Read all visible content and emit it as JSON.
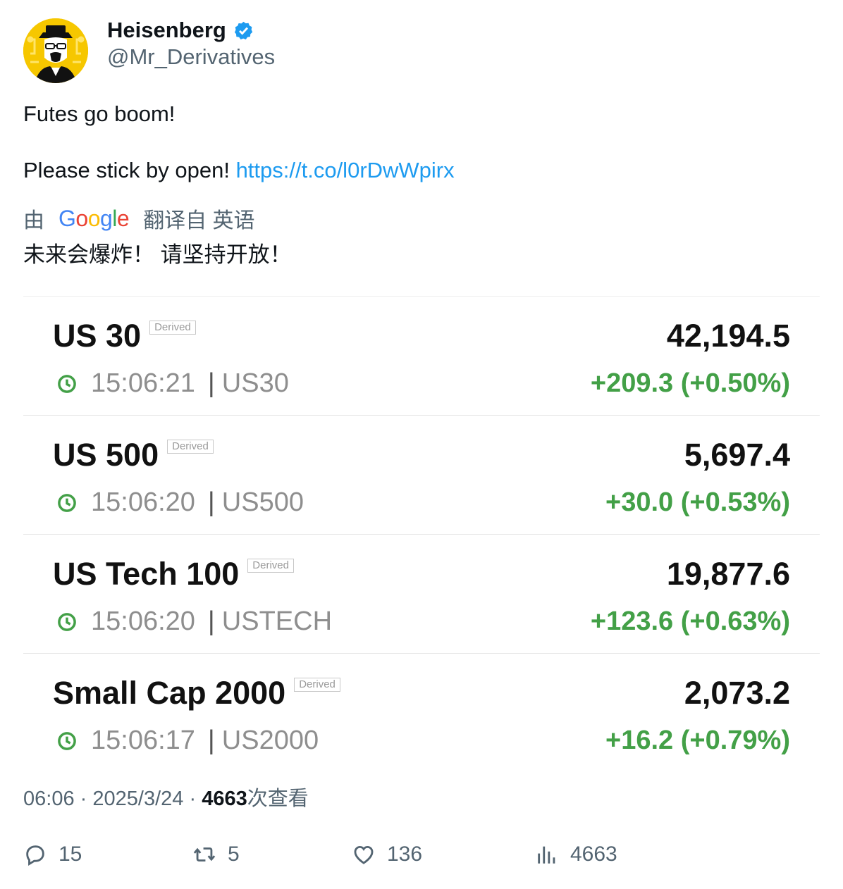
{
  "author": {
    "display_name": "Heisenberg",
    "handle": "@Mr_Derivatives",
    "verified_icon": "verified-badge-icon",
    "avatar_icon": "heisenberg-avatar"
  },
  "tweet": {
    "line1": "Futes go boom!",
    "line2_text": "Please stick by open! ",
    "link": "https://t.co/l0rDwWpirx"
  },
  "translation": {
    "by": "由",
    "provider": "Google",
    "from": "翻译自 英语",
    "text": "未来会爆炸！ 请坚持开放！"
  },
  "quotes": [
    {
      "name": "US 30",
      "badge": "Derived",
      "price": "42,194.5",
      "time": "15:06:21",
      "code": "US30",
      "change": "+209.3 (+0.50%)"
    },
    {
      "name": "US 500",
      "badge": "Derived",
      "price": "5,697.4",
      "time": "15:06:20",
      "code": "US500",
      "change": "+30.0 (+0.53%)"
    },
    {
      "name": "US Tech 100",
      "badge": "Derived",
      "price": "19,877.6",
      "time": "15:06:20",
      "code": "USTECH",
      "change": "+123.6 (+0.63%)"
    },
    {
      "name": "Small Cap 2000",
      "badge": "Derived",
      "price": "2,073.2",
      "time": "15:06:17",
      "code": "US2000",
      "change": "+16.2 (+0.79%)"
    }
  ],
  "meta": {
    "time": "06:06",
    "dot": "·",
    "date": "2025/3/24",
    "views": "4663",
    "views_label": "次查看"
  },
  "actions": {
    "replies": "15",
    "reposts": "5",
    "likes": "136",
    "views": "4663"
  },
  "colors": {
    "link": "#1d9bf0",
    "positive": "#43a047",
    "muted": "#536471",
    "verified": "#1d9bf0"
  }
}
